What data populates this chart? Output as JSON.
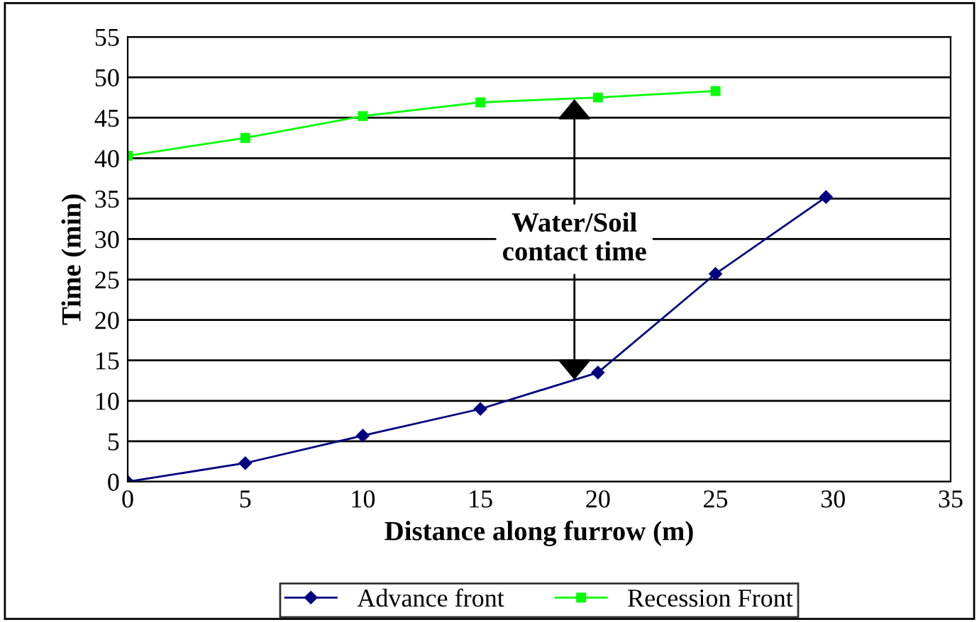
{
  "chart_data": {
    "type": "line",
    "xlabel": "Distance along furrow (m)",
    "ylabel": "Time (min)",
    "xlim": [
      0,
      35
    ],
    "xticks": [
      0,
      5,
      10,
      15,
      20,
      25,
      30,
      35
    ],
    "ylim": [
      0,
      55
    ],
    "yticks": [
      0,
      5,
      10,
      15,
      20,
      25,
      30,
      35,
      40,
      45,
      50,
      55
    ],
    "grid": "y",
    "legend": "bottom",
    "series": [
      {
        "name": "Advance front",
        "color": "#000080",
        "marker": "diamond",
        "x": [
          0,
          5,
          10,
          15,
          20,
          25,
          29.7
        ],
        "values": [
          0,
          2.3,
          5.7,
          9,
          13.5,
          25.7,
          35.2
        ]
      },
      {
        "name": "Recession Front",
        "color": "#00ff00",
        "marker": "square",
        "x": [
          0,
          5,
          10,
          15,
          20,
          25
        ],
        "values": [
          40.3,
          42.5,
          45.2,
          46.9,
          47.5,
          48.3
        ]
      }
    ],
    "annotations": [
      {
        "text": "Water/Soil\ncontact time",
        "x": 19,
        "y": 47.3
      }
    ]
  }
}
